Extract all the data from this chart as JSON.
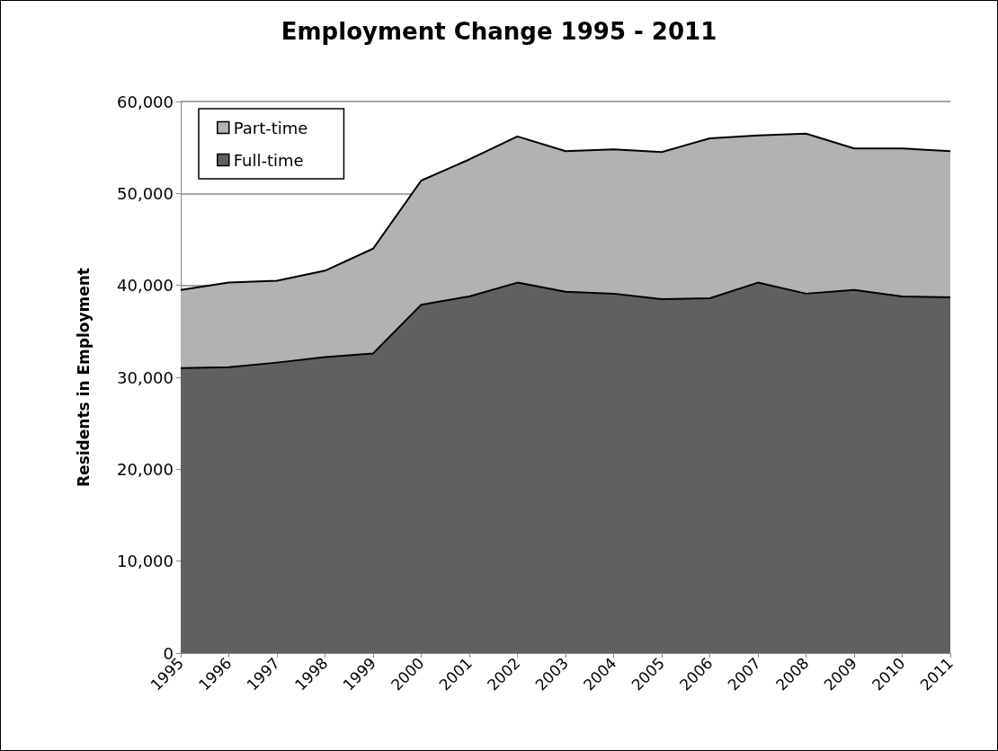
{
  "chart_data": {
    "type": "area",
    "title": "Employment Change 1995 - 2011",
    "ylabel": "Residents in Employment",
    "categories": [
      "1995",
      "1996",
      "1997",
      "1998",
      "1999",
      "2000",
      "2001",
      "2002",
      "2003",
      "2004",
      "2005",
      "2006",
      "2007",
      "2008",
      "2009",
      "2010",
      "2011"
    ],
    "stacked": true,
    "series": [
      {
        "name": "Full-time",
        "color": "#606060",
        "values": [
          31000,
          31100,
          31600,
          32200,
          32600,
          37900,
          38800,
          40300,
          39300,
          39100,
          38500,
          38600,
          40300,
          39100,
          39500,
          38800,
          38700
        ]
      },
      {
        "name": "Part-time",
        "color": "#b2b2b2",
        "values": [
          8500,
          9200,
          8900,
          9400,
          11400,
          13500,
          14900,
          15900,
          15300,
          15700,
          16000,
          17400,
          16000,
          17400,
          15400,
          16100,
          15900
        ]
      }
    ],
    "ylim": [
      0,
      60000
    ],
    "yticks": [
      0,
      {
        "value": 10000,
        "label": "10,000"
      },
      {
        "value": 20000,
        "label": "20,000"
      },
      {
        "value": 30000,
        "label": "30,000"
      },
      {
        "value": 40000,
        "label": "40,000"
      },
      {
        "value": 50000,
        "label": "50,000"
      },
      {
        "value": 60000,
        "label": "60,000"
      }
    ],
    "grid": "y",
    "legend": "top left"
  }
}
